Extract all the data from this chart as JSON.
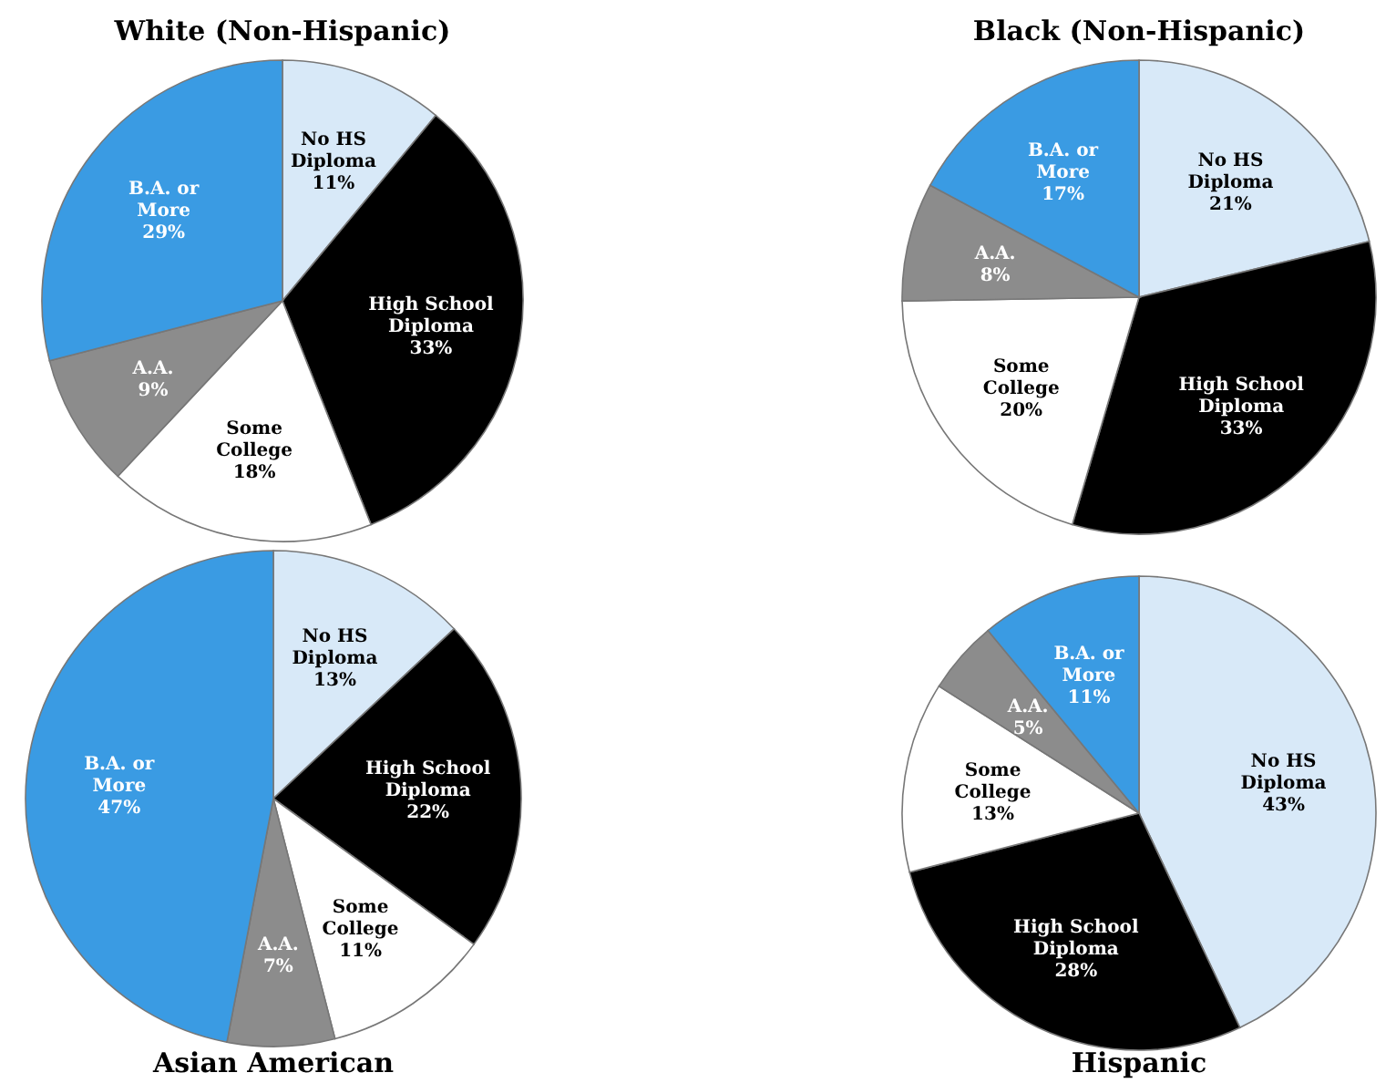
{
  "chart_data": [
    {
      "type": "pie",
      "title": "White (Non-Hispanic)",
      "categories": [
        "No HS Diploma",
        "High School Diploma",
        "Some College",
        "A.A.",
        "B.A. or More"
      ],
      "values": [
        11,
        33,
        18,
        9,
        29
      ],
      "value_labels": [
        "11%",
        "33%",
        "18%",
        "9%",
        "29%"
      ],
      "colors": [
        "#d8e9f8",
        "#000000",
        "#ffffff",
        "#8c8c8c",
        "#3a9be3"
      ]
    },
    {
      "type": "pie",
      "title": "Black (Non-Hispanic)",
      "categories": [
        "No HS Diploma",
        "High School Diploma",
        "Some College",
        "A.A.",
        "B.A. or More"
      ],
      "values": [
        21,
        33,
        20,
        8,
        17
      ],
      "value_labels": [
        "21%",
        "33%",
        "20%",
        "8%",
        "17%"
      ],
      "colors": [
        "#d8e9f8",
        "#000000",
        "#ffffff",
        "#8c8c8c",
        "#3a9be3"
      ]
    },
    {
      "type": "pie",
      "title": "Asian American",
      "categories": [
        "No HS Diploma",
        "High School Diploma",
        "Some College",
        "A.A.",
        "B.A. or More"
      ],
      "values": [
        13,
        22,
        11,
        7,
        47
      ],
      "value_labels": [
        "13%",
        "22%",
        "11%",
        "7%",
        "47%"
      ],
      "colors": [
        "#d8e9f8",
        "#000000",
        "#ffffff",
        "#8c8c8c",
        "#3a9be3"
      ]
    },
    {
      "type": "pie",
      "title": "Hispanic",
      "categories": [
        "No HS Diploma",
        "High School Diploma",
        "Some College",
        "A.A.",
        "B.A. or More"
      ],
      "values": [
        43,
        28,
        13,
        5,
        11
      ],
      "value_labels": [
        "43%",
        "28%",
        "13%",
        "5%",
        "11%"
      ],
      "colors": [
        "#d8e9f8",
        "#000000",
        "#ffffff",
        "#8c8c8c",
        "#3a9be3"
      ]
    }
  ]
}
